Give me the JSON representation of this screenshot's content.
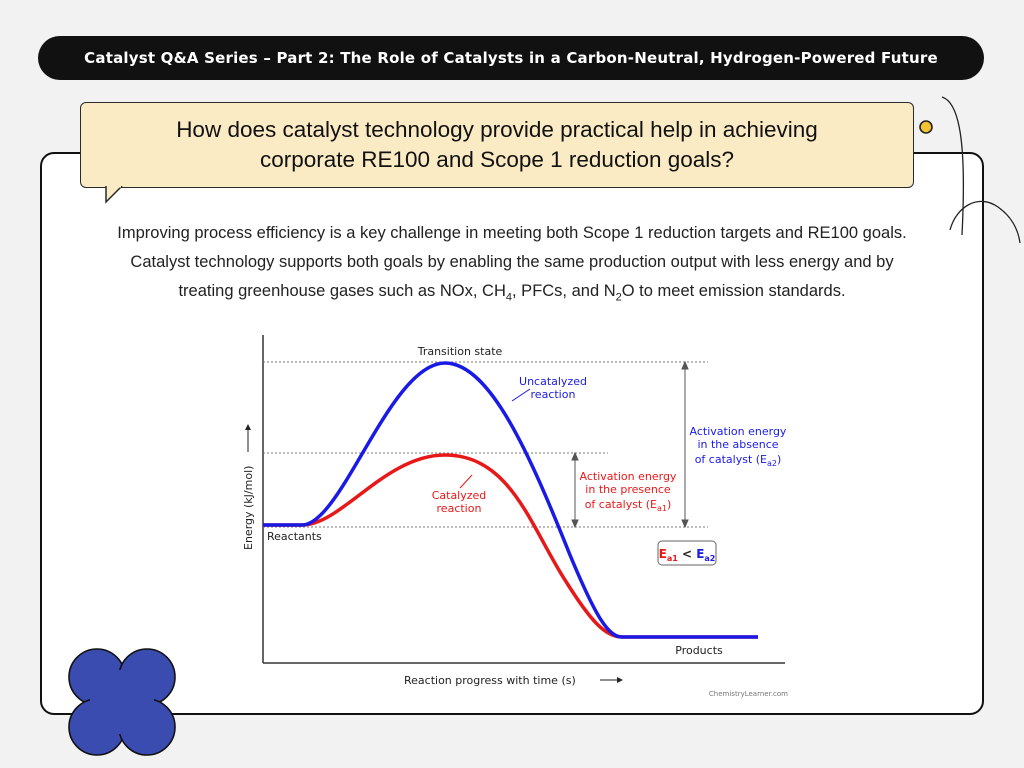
{
  "header": {
    "title": "Catalyst Q&A Series – Part 2: The Role of Catalysts in a Carbon-Neutral, Hydrogen-Powered Future"
  },
  "question": {
    "line1": "How does catalyst technology provide practical help in achieving",
    "line2": "corporate RE100 and Scope 1 reduction goals?"
  },
  "paragraph": {
    "line1": "Improving process efficiency is a key challenge in meeting both Scope 1 reduction targets and RE100 goals.",
    "line2": "Catalyst technology supports both goals by enabling the same production output with less energy and by",
    "line3_a": "treating greenhouse gases such as NOx, CH",
    "line3_sub1": "4",
    "line3_b": ", PFCs, and N",
    "line3_sub2": "2",
    "line3_c": "O to meet emission standards."
  },
  "diagram": {
    "transition_state": "Transition state",
    "uncatalyzed_l1": "Uncatalyzed",
    "uncatalyzed_l2": "reaction",
    "catalyzed_l1": "Catalyzed",
    "catalyzed_l2": "reaction",
    "ea_catalyzed_l1": "Activation energy",
    "ea_catalyzed_l2": "in the presence",
    "ea_catalyzed_l3": "of catalyst (E",
    "ea_catalyzed_sub": "a1",
    "ea_uncatalyzed_l1": "Activation energy",
    "ea_uncatalyzed_l2": "in the absence",
    "ea_uncatalyzed_l3": "of catalyst (E",
    "ea_uncatalyzed_sub": "a2",
    "compare_e1": "E",
    "compare_sub1": "a1",
    "compare_op": " < ",
    "compare_e2": "E",
    "compare_sub2": "a2",
    "reactants": "Reactants",
    "products": "Products",
    "ylabel": "Energy (kJ/mol)",
    "xlabel": "Reaction progress with time (s)",
    "credit": "ChemistryLearner.com",
    "colors": {
      "uncatalyzed": "#1a1ae6",
      "catalyzed": "#e81818",
      "axis": "#333333"
    }
  }
}
